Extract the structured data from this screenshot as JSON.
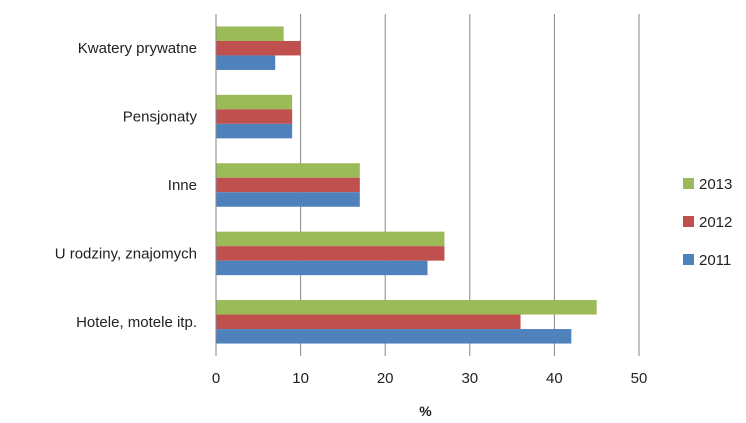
{
  "chart_data": {
    "type": "bar",
    "orientation": "horizontal",
    "categories": [
      "Kwatery prywatne",
      "Pensjonaty",
      "Inne",
      "U rodziny, znajomych",
      "Hotele, motele itp."
    ],
    "series": [
      {
        "name": "2013",
        "color": "#9BBB59",
        "values": [
          8,
          9,
          17,
          27,
          45
        ]
      },
      {
        "name": "2012",
        "color": "#C0504D",
        "values": [
          10,
          9,
          17,
          27,
          36
        ]
      },
      {
        "name": "2011",
        "color": "#4F81BD",
        "values": [
          7,
          9,
          17,
          25,
          42
        ]
      }
    ],
    "xlabel": "%",
    "xlim": [
      0,
      50
    ],
    "xticks": [
      "0",
      "10",
      "20",
      "30",
      "40",
      "50"
    ],
    "grid": "vertical",
    "legend_position": "right"
  }
}
